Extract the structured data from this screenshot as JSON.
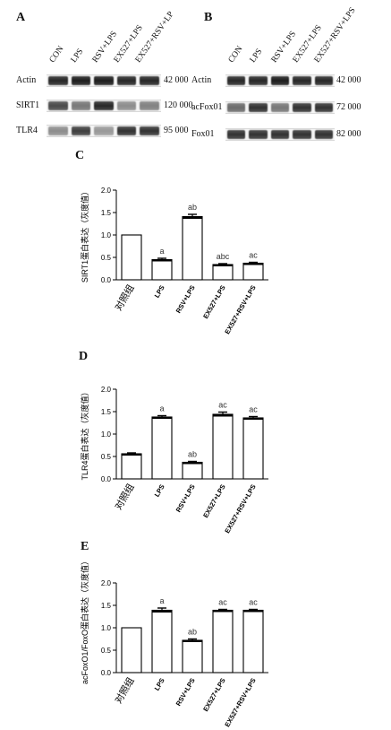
{
  "panels": {
    "a_letter": "A",
    "b_letter": "B",
    "c_letter": "C",
    "d_letter": "D",
    "e_letter": "E"
  },
  "blot_a": {
    "lanes": [
      "CON",
      "LPS",
      "RSV+LPS",
      "EX527+LPS",
      "EX527+RSV+LP"
    ],
    "rows": [
      {
        "label": "Actin",
        "mw": "42 000",
        "intensity": [
          0.9,
          0.95,
          0.95,
          0.9,
          0.9
        ]
      },
      {
        "label": "SIRT1",
        "mw": "120 000",
        "intensity": [
          0.75,
          0.55,
          0.9,
          0.45,
          0.5
        ]
      },
      {
        "label": "TLR4",
        "mw": "95 000",
        "intensity": [
          0.45,
          0.8,
          0.4,
          0.85,
          0.85
        ]
      }
    ]
  },
  "blot_b": {
    "lanes": [
      "CON",
      "LPS",
      "RSV+LPS",
      "EX527+LPS",
      "EX527+RSV+LPS"
    ],
    "rows": [
      {
        "label": "Actin",
        "mw": "42 000",
        "intensity": [
          0.9,
          0.9,
          0.95,
          0.9,
          0.9
        ]
      },
      {
        "label": "acFox01",
        "mw": "72 000",
        "intensity": [
          0.6,
          0.85,
          0.55,
          0.85,
          0.85
        ]
      },
      {
        "label": "Fox01",
        "mw": "82 000",
        "intensity": [
          0.85,
          0.85,
          0.85,
          0.85,
          0.85
        ]
      }
    ]
  },
  "chart_data": [
    {
      "type": "bar",
      "panel": "C",
      "categories": [
        "对照组",
        "LPS",
        "RSV+LPS",
        "EX527+LPS",
        "EX527+RSV+LPS"
      ],
      "values": [
        1.0,
        0.45,
        1.41,
        0.34,
        0.37
      ],
      "errors": [
        0.0,
        0.03,
        0.05,
        0.02,
        0.02
      ],
      "annotations": [
        "",
        "a",
        "ab",
        "abc",
        "ac"
      ],
      "ylabel": "SIRT1蛋白表达（灰度值）",
      "ylim": [
        0,
        2.0
      ],
      "yticks": [
        "0.0",
        "0.5",
        "1.0",
        "1.5",
        "2.0"
      ],
      "tick_values": [
        0,
        0.5,
        1.0,
        1.5,
        2.0
      ]
    },
    {
      "type": "bar",
      "panel": "D",
      "categories": [
        "对照组",
        "LPS",
        "RSV+LPS",
        "EX527+LPS",
        "EX527+RSV+LPS"
      ],
      "values": [
        0.56,
        1.38,
        0.37,
        1.44,
        1.36
      ],
      "errors": [
        0.02,
        0.03,
        0.02,
        0.05,
        0.03
      ],
      "annotations": [
        "",
        "a",
        "ab",
        "ac",
        "ac"
      ],
      "ylabel": "TLR4蛋白表达（灰度值）",
      "ylim": [
        0,
        2.0
      ],
      "yticks": [
        "0.0",
        "0.5",
        "1.0",
        "1.5",
        "2.0"
      ],
      "tick_values": [
        0,
        0.5,
        1.0,
        1.5,
        2.0
      ]
    },
    {
      "type": "bar",
      "panel": "E",
      "categories": [
        "对照组",
        "LPS",
        "RSV+LPS",
        "EX527+LPS",
        "EX527+RSV+LPS"
      ],
      "values": [
        1.0,
        1.39,
        0.72,
        1.39,
        1.39
      ],
      "errors": [
        0.0,
        0.05,
        0.03,
        0.02,
        0.02
      ],
      "annotations": [
        "",
        "a",
        "ab",
        "ac",
        "ac"
      ],
      "ylabel": "acFoxO1/FoxO蛋白表达（灰度值）",
      "ylim": [
        0,
        2.0
      ],
      "yticks": [
        "0.0",
        "0.5",
        "1.0",
        "1.5",
        "2.0"
      ],
      "tick_values": [
        0,
        0.5,
        1.0,
        1.5,
        2.0
      ]
    }
  ]
}
